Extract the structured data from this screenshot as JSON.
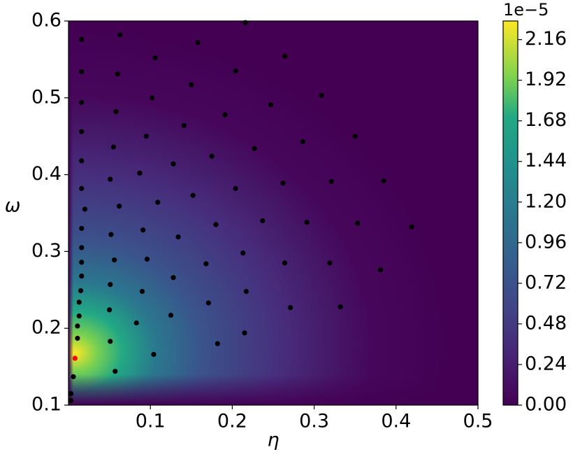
{
  "chart_data": {
    "type": "scatter",
    "xlabel": "η",
    "ylabel": "ω",
    "colorbar_offset": "1e−5",
    "xlim": [
      0,
      0.5
    ],
    "ylim": [
      0.1,
      0.6
    ],
    "xticks": [
      0.1,
      0.2,
      0.3,
      0.4,
      0.5
    ],
    "yticks": [
      0.1,
      0.2,
      0.3,
      0.4,
      0.5,
      0.6
    ],
    "clim": [
      0,
      2.27
    ],
    "cticks": [
      {
        "value": 0,
        "label": "0.00"
      },
      0.24,
      0.48,
      0.72,
      0.96,
      {
        "value": 1.2,
        "label": "1.20"
      },
      1.44,
      1.68,
      1.92,
      2.16
    ],
    "series": [
      {
        "color": "#000000",
        "x": [
          0.016,
          0.063,
          0.158,
          0.216,
          0.106,
          0.264,
          0.016,
          0.06,
          0.204,
          0.15,
          0.016,
          0.102,
          0.058,
          0.191,
          0.247,
          0.309,
          0.016,
          0.095,
          0.141,
          0.055,
          0.227,
          0.286,
          0.35,
          0.016,
          0.087,
          0.128,
          0.175,
          0.051,
          0.262,
          0.321,
          0.385,
          0.016,
          0.062,
          0.109,
          0.152,
          0.204,
          0.02,
          0.016,
          0.052,
          0.091,
          0.134,
          0.18,
          0.237,
          0.291,
          0.353,
          0.419,
          0.016,
          0.056,
          0.096,
          0.168,
          0.213,
          0.264,
          0.319,
          0.016,
          0.016,
          0.051,
          0.09,
          0.128,
          0.217,
          0.381,
          0.015,
          0.013,
          0.05,
          0.171,
          0.271,
          0.332,
          0.013,
          0.011,
          0.083,
          0.125,
          0.215,
          0.051,
          0.011,
          0.104,
          0.182,
          0.057,
          0.006,
          0.003,
          0.003
        ],
        "y": [
          0.576,
          0.582,
          0.572,
          0.598,
          0.552,
          0.554,
          0.534,
          0.531,
          0.535,
          0.517,
          0.494,
          0.5,
          0.482,
          0.478,
          0.491,
          0.503,
          0.456,
          0.45,
          0.464,
          0.436,
          0.434,
          0.443,
          0.45,
          0.418,
          0.402,
          0.414,
          0.424,
          0.394,
          0.389,
          0.391,
          0.392,
          0.382,
          0.359,
          0.364,
          0.373,
          0.382,
          0.355,
          0.33,
          0.322,
          0.328,
          0.319,
          0.335,
          0.34,
          0.338,
          0.337,
          0.332,
          0.305,
          0.289,
          0.29,
          0.284,
          0.298,
          0.285,
          0.285,
          0.286,
          0.268,
          0.257,
          0.248,
          0.266,
          0.248,
          0.276,
          0.249,
          0.234,
          0.224,
          0.233,
          0.227,
          0.228,
          0.216,
          0.203,
          0.207,
          0.217,
          0.194,
          0.183,
          0.187,
          0.166,
          0.18,
          0.144,
          0.137,
          0.115,
          0.106
        ]
      },
      {
        "color": "#ff0000",
        "x": [
          0.008
        ],
        "y": [
          0.161
        ]
      }
    ]
  }
}
